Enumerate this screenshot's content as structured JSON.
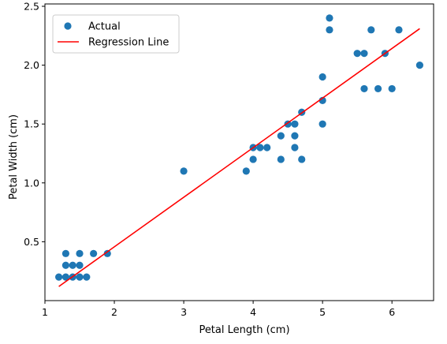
{
  "chart_data": {
    "type": "scatter",
    "xlabel": "Petal Length (cm)",
    "ylabel": "Petal Width (cm)",
    "xlim": [
      1.0,
      6.6
    ],
    "ylim": [
      0.0,
      2.52
    ],
    "xticks": [
      1,
      2,
      3,
      4,
      5,
      6
    ],
    "yticks": [
      0.5,
      1.0,
      1.5,
      2.0,
      2.5
    ],
    "ytick_labels": [
      "0.5",
      "1.0",
      "1.5",
      "2.0",
      "2.5"
    ],
    "grid": false,
    "legend_position": "upper-left",
    "series": [
      {
        "name": "Actual",
        "kind": "scatter",
        "color": "#1f77b4",
        "points": [
          [
            1.2,
            0.2
          ],
          [
            1.3,
            0.2
          ],
          [
            1.4,
            0.2
          ],
          [
            1.5,
            0.2
          ],
          [
            1.6,
            0.2
          ],
          [
            1.3,
            0.3
          ],
          [
            1.4,
            0.3
          ],
          [
            1.5,
            0.3
          ],
          [
            1.3,
            0.4
          ],
          [
            1.5,
            0.4
          ],
          [
            1.7,
            0.4
          ],
          [
            1.9,
            0.4
          ],
          [
            3.0,
            1.1
          ],
          [
            3.9,
            1.1
          ],
          [
            4.0,
            1.2
          ],
          [
            4.4,
            1.2
          ],
          [
            4.7,
            1.2
          ],
          [
            4.0,
            1.3
          ],
          [
            4.1,
            1.3
          ],
          [
            4.2,
            1.3
          ],
          [
            4.6,
            1.3
          ],
          [
            4.4,
            1.4
          ],
          [
            4.6,
            1.4
          ],
          [
            4.5,
            1.5
          ],
          [
            4.6,
            1.5
          ],
          [
            5.0,
            1.5
          ],
          [
            4.7,
            1.6
          ],
          [
            5.0,
            1.7
          ],
          [
            5.6,
            1.8
          ],
          [
            5.8,
            1.8
          ],
          [
            6.0,
            1.8
          ],
          [
            5.0,
            1.9
          ],
          [
            6.4,
            2.0
          ],
          [
            5.5,
            2.1
          ],
          [
            5.6,
            2.1
          ],
          [
            5.9,
            2.1
          ],
          [
            5.1,
            2.3
          ],
          [
            5.7,
            2.3
          ],
          [
            6.1,
            2.3
          ],
          [
            5.1,
            2.4
          ]
        ]
      },
      {
        "name": "Regression Line",
        "kind": "line",
        "color": "#ff0000",
        "points": [
          [
            1.2,
            0.12
          ],
          [
            6.4,
            2.31
          ]
        ]
      }
    ]
  }
}
